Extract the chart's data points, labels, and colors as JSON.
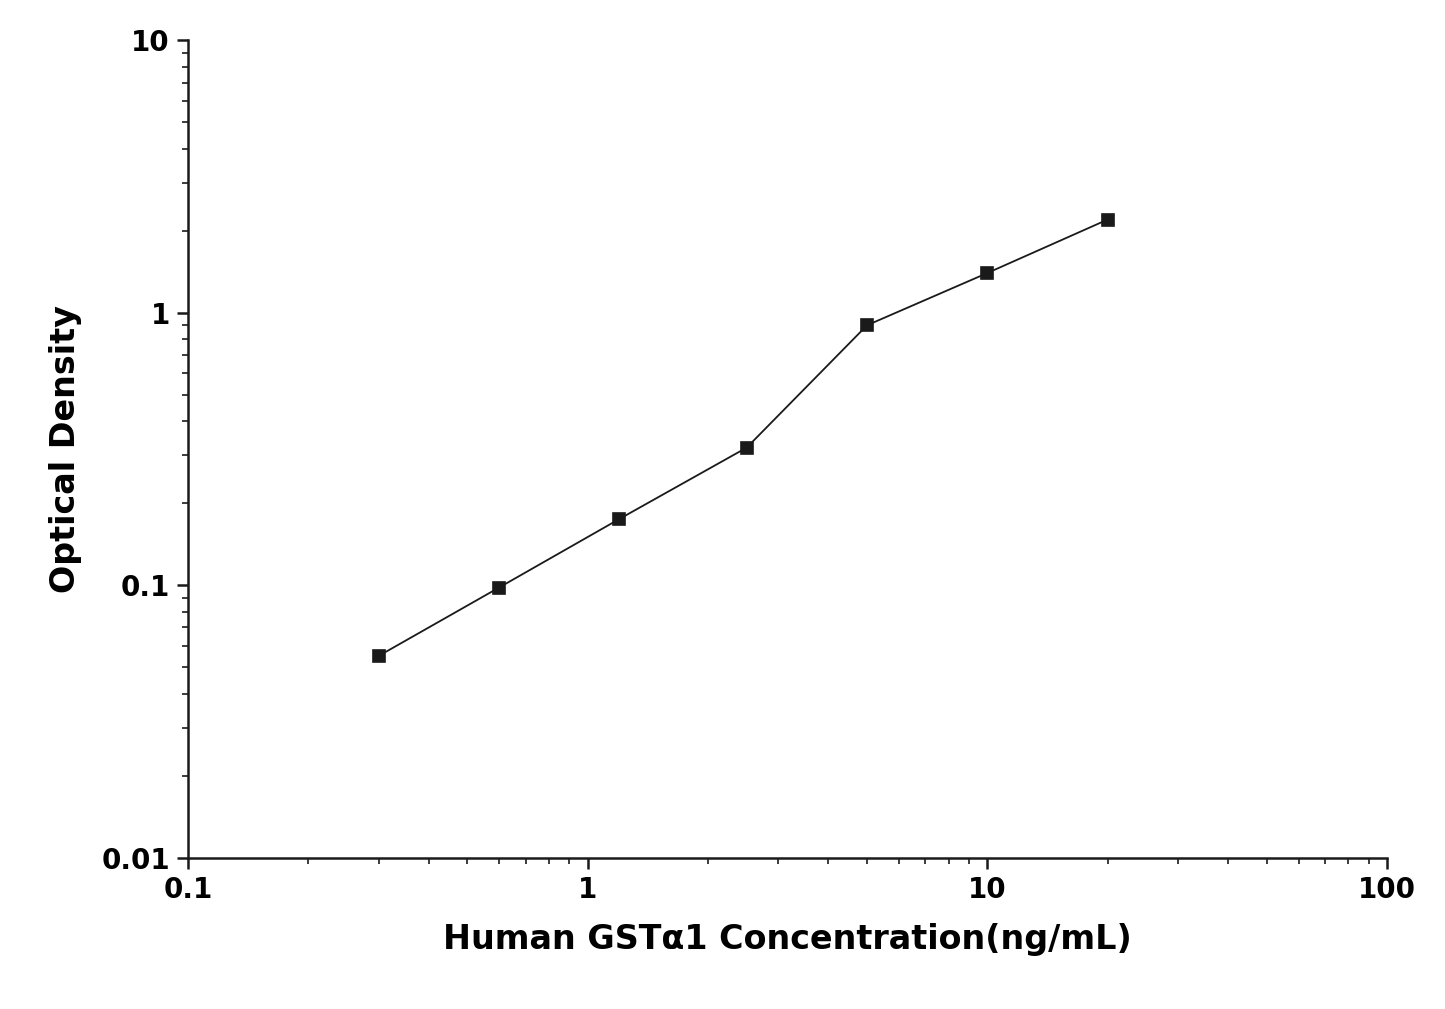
{
  "x_values": [
    0.3,
    0.6,
    1.2,
    2.5,
    5.0,
    10.0,
    20.0
  ],
  "y_values": [
    0.055,
    0.098,
    0.175,
    0.32,
    0.9,
    1.4,
    2.2
  ],
  "xlabel": "Human GSTα1 Concentration(ng/mL)",
  "ylabel": "Optical Density",
  "xlim": [
    0.1,
    100
  ],
  "ylim": [
    0.01,
    10
  ],
  "line_color": "#1a1a1a",
  "marker": "s",
  "marker_color": "#1a1a1a",
  "marker_size": 8,
  "line_width": 1.3,
  "xlabel_fontsize": 24,
  "ylabel_fontsize": 24,
  "tick_fontsize": 20,
  "background_color": "#ffffff",
  "spine_color": "#1a1a1a",
  "spine_linewidth": 1.8
}
